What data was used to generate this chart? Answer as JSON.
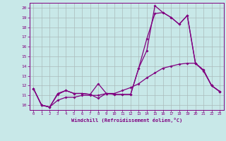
{
  "xlabel": "Windchill (Refroidissement éolien,°C)",
  "bg_color": "#c8e8e8",
  "line_color": "#800080",
  "grid_color": "#aabbbb",
  "xlim": [
    -0.5,
    23.5
  ],
  "ylim": [
    9.5,
    20.5
  ],
  "xticks": [
    0,
    1,
    2,
    3,
    4,
    5,
    6,
    7,
    8,
    9,
    10,
    11,
    12,
    13,
    14,
    15,
    16,
    17,
    18,
    19,
    20,
    21,
    22,
    23
  ],
  "yticks": [
    10,
    11,
    12,
    13,
    14,
    15,
    16,
    17,
    18,
    19,
    20
  ],
  "line1_x": [
    0,
    1,
    2,
    3,
    4,
    5,
    6,
    7,
    8,
    9,
    10,
    11,
    12,
    13,
    14,
    15,
    16,
    17,
    18,
    19,
    20,
    21,
    22,
    23
  ],
  "line1_y": [
    11.7,
    10.0,
    9.8,
    11.1,
    11.5,
    11.2,
    11.2,
    11.1,
    12.2,
    11.2,
    11.1,
    11.1,
    11.1,
    13.8,
    15.6,
    20.2,
    19.5,
    19.0,
    18.3,
    19.2,
    14.3,
    13.6,
    12.0,
    11.4
  ],
  "line2_x": [
    0,
    1,
    2,
    3,
    4,
    5,
    6,
    7,
    8,
    9,
    10,
    11,
    12,
    13,
    14,
    15,
    16,
    17,
    18,
    19,
    20,
    21,
    22,
    23
  ],
  "line2_y": [
    11.7,
    10.0,
    9.8,
    11.2,
    11.5,
    11.2,
    11.2,
    11.1,
    10.7,
    11.2,
    11.1,
    11.1,
    11.1,
    13.8,
    16.8,
    19.4,
    19.5,
    19.0,
    18.3,
    19.2,
    14.3,
    13.6,
    12.0,
    11.4
  ],
  "line3_x": [
    0,
    1,
    2,
    3,
    4,
    5,
    6,
    7,
    8,
    9,
    10,
    11,
    12,
    13,
    14,
    15,
    16,
    17,
    18,
    19,
    20,
    21,
    22,
    23
  ],
  "line3_y": [
    11.7,
    10.0,
    9.8,
    10.5,
    10.8,
    10.8,
    11.0,
    11.0,
    11.0,
    11.2,
    11.2,
    11.5,
    11.8,
    12.2,
    12.8,
    13.3,
    13.8,
    14.0,
    14.2,
    14.3,
    14.3,
    13.5,
    12.0,
    11.4
  ]
}
